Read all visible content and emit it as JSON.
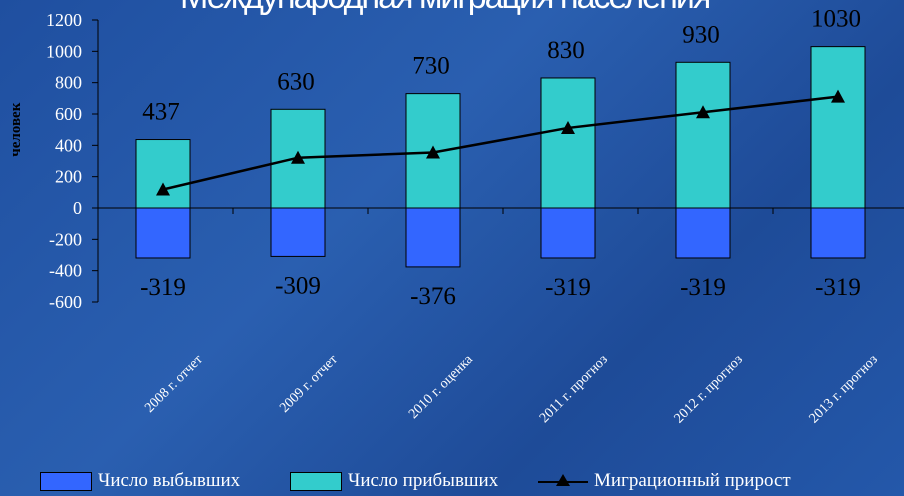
{
  "title": "Международная миграция населения",
  "chart_data": {
    "type": "bar",
    "ylabel": "человек",
    "ylim": [
      -600,
      1200
    ],
    "yticks": [
      1200,
      1000,
      800,
      600,
      400,
      200,
      0,
      -200,
      -400,
      -600
    ],
    "categories": [
      "2008 г. отчет",
      "2009 г. отчет",
      "2010 г. оценка",
      "2011 г. прогноз",
      "2012 г. прогноз",
      "2013 г. прогноз"
    ],
    "series": [
      {
        "name": "Число выбывших",
        "type": "bar",
        "color": "#3366ff",
        "values": [
          -319,
          -309,
          -376,
          -319,
          -319,
          -319
        ],
        "labels": [
          "-319",
          "-309",
          "-376",
          "-319",
          "-319",
          "-319"
        ]
      },
      {
        "name": "Число прибывших",
        "type": "bar",
        "color": "#33cccc",
        "values": [
          437,
          630,
          730,
          830,
          930,
          1030
        ],
        "labels": [
          "437",
          "630",
          "730",
          "830",
          "930",
          "1030"
        ]
      },
      {
        "name": "Миграционный прирост",
        "type": "line",
        "color": "#000000",
        "marker": "triangle",
        "values": [
          118,
          321,
          354,
          511,
          611,
          711
        ]
      }
    ],
    "legend": "bottom",
    "grid": false
  }
}
